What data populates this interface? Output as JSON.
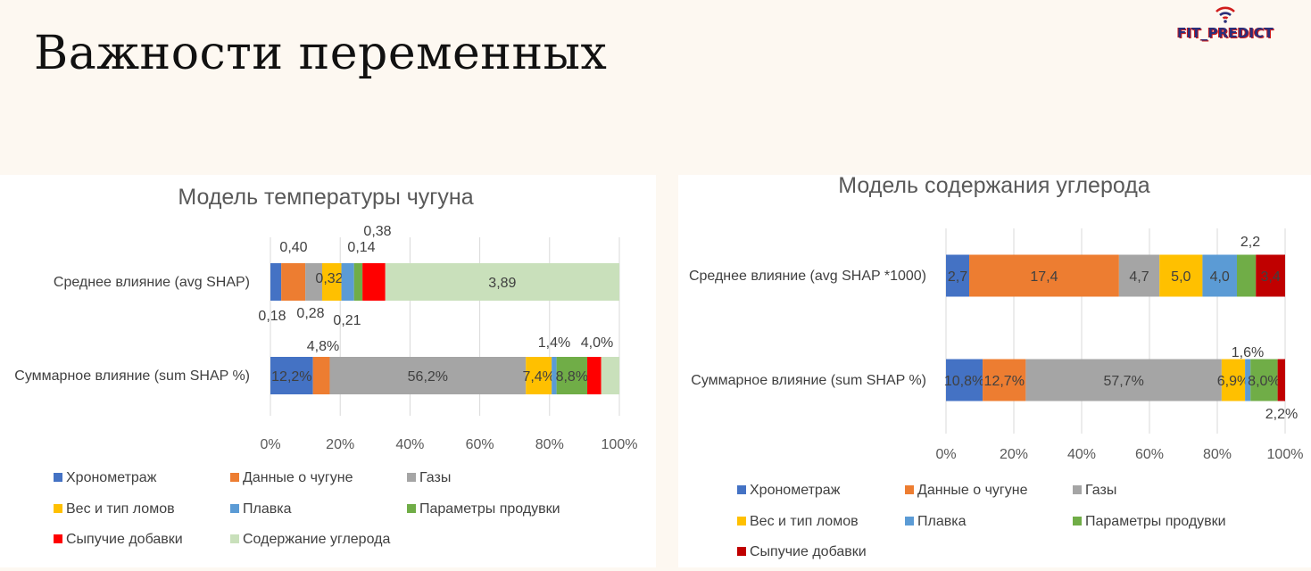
{
  "slide": {
    "title": "Важности переменных",
    "logo_text": "FIT_PREDICT",
    "logo_icon": "wifi-signal-icon"
  },
  "chart_data": [
    {
      "type": "bar",
      "orientation": "horizontal",
      "stacked": "100%",
      "title": "Модель температуры чугуна",
      "categories": [
        "Среднее влияние (avg SHAP)",
        "Суммарное влияние (sum SHAP %)"
      ],
      "xlim": [
        0,
        100
      ],
      "xticks": [
        "0%",
        "20%",
        "40%",
        "60%",
        "80%",
        "100%"
      ],
      "grid": "vertical",
      "legend_position": "bottom",
      "series": [
        {
          "name": "Хронометраж",
          "color": "#4472c4",
          "values": [
            0.18,
            12.2
          ],
          "labels": [
            "0,18",
            "12,2%"
          ]
        },
        {
          "name": "Данные о чугуне",
          "color": "#ed7d31",
          "values": [
            0.4,
            4.8
          ],
          "labels": [
            "0,40",
            "4,8%"
          ]
        },
        {
          "name": "Газы",
          "color": "#a5a5a5",
          "values": [
            0.28,
            56.2
          ],
          "labels": [
            "0,28",
            "56,2%"
          ]
        },
        {
          "name": "Вес и тип ломов",
          "color": "#ffc000",
          "values": [
            0.32,
            7.4
          ],
          "labels": [
            "0,32",
            "7,4%"
          ]
        },
        {
          "name": "Плавка",
          "color": "#5b9bd5",
          "values": [
            0.21,
            1.4
          ],
          "labels": [
            "0,21",
            "1,4%"
          ]
        },
        {
          "name": "Параметры продувки",
          "color": "#70ad47",
          "values": [
            0.14,
            8.8
          ],
          "labels": [
            "0,14",
            "8,8%"
          ]
        },
        {
          "name": "Сыпучие добавки",
          "color": "#ff0000",
          "values": [
            0.38,
            4.0
          ],
          "labels": [
            "0,38",
            "4,0%"
          ]
        },
        {
          "name": "Содержание углерода",
          "color": "#c9e0bb",
          "values": [
            3.89,
            5.2
          ],
          "labels": [
            "3,89",
            ""
          ]
        }
      ]
    },
    {
      "type": "bar",
      "orientation": "horizontal",
      "stacked": "100%",
      "title": "Модель содержания углерода",
      "categories": [
        "Среднее влияние (avg SHAP *1000)",
        "Суммарное влияние (sum SHAP %)"
      ],
      "xlim": [
        0,
        100
      ],
      "xticks": [
        "0%",
        "20%",
        "40%",
        "60%",
        "80%",
        "100%"
      ],
      "grid": "vertical",
      "legend_position": "bottom",
      "series": [
        {
          "name": "Хронометраж",
          "color": "#4472c4",
          "values": [
            2.7,
            10.8
          ],
          "labels": [
            "2,7",
            "10,8%"
          ]
        },
        {
          "name": "Данные о чугуне",
          "color": "#ed7d31",
          "values": [
            17.4,
            12.7
          ],
          "labels": [
            "17,4",
            "12,7%"
          ]
        },
        {
          "name": "Газы",
          "color": "#a5a5a5",
          "values": [
            4.7,
            57.7
          ],
          "labels": [
            "4,7",
            "57,7%"
          ]
        },
        {
          "name": "Вес и тип ломов",
          "color": "#ffc000",
          "values": [
            5.0,
            6.9
          ],
          "labels": [
            "5,0",
            "6,9%"
          ]
        },
        {
          "name": "Плавка",
          "color": "#5b9bd5",
          "values": [
            4.0,
            1.6
          ],
          "labels": [
            "4,0",
            "1,6%"
          ]
        },
        {
          "name": "Параметры продувки",
          "color": "#70ad47",
          "values": [
            2.2,
            8.0
          ],
          "labels": [
            "2,2",
            "8,0%"
          ]
        },
        {
          "name": "Сыпучие добавки",
          "color": "#c00000",
          "values": [
            3.4,
            2.2
          ],
          "labels": [
            "3,4",
            "2,2%"
          ]
        }
      ]
    }
  ]
}
